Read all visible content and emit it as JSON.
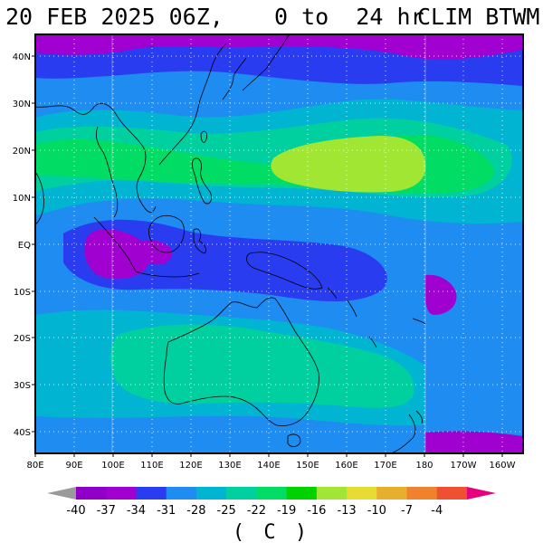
{
  "title": {
    "date": "20 FEB 2025 06Z,",
    "range": "0 to  24 hr",
    "field": "CLIM BTWM"
  },
  "lat_labels": [
    "40N",
    "30N",
    "20N",
    "10N",
    "EQ",
    "10S",
    "20S",
    "30S",
    "40S"
  ],
  "lon_labels": [
    "80E",
    "90E",
    "100E",
    "110E",
    "120E",
    "130E",
    "140E",
    "150E",
    "160E",
    "170E",
    "180",
    "170W",
    "160W"
  ],
  "colorbar": {
    "values": [
      "-40",
      "-37",
      "-34",
      "-31",
      "-28",
      "-25",
      "-22",
      "-19",
      "-16",
      "-13",
      "-10",
      "-7",
      "-4"
    ],
    "colors": [
      "#9a9a9a",
      "#8e00c8",
      "#a000d0",
      "#2a3cf0",
      "#1e8cf0",
      "#00b4d2",
      "#00d0a0",
      "#00dc64",
      "#00d200",
      "#a0e632",
      "#e6dc32",
      "#e6af2d",
      "#f0822d",
      "#f05032",
      "#e6007d"
    ],
    "units": "( C )"
  },
  "map": {
    "region": "Western Pacific / Maritime Continent / Australia",
    "field_colors": {
      "c37": "#8e00c8",
      "c34": "#a000d0",
      "c31": "#2a3cf0",
      "c28": "#1e8cf0",
      "c25": "#00b4d2",
      "c22": "#00d0a0",
      "c19": "#00dc64",
      "c16": "#a0e632",
      "c13": "#e6dc32"
    }
  }
}
